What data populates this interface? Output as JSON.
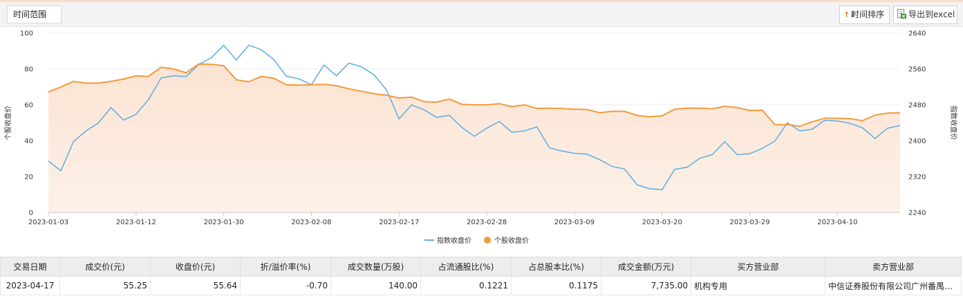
{
  "toolbar": {
    "range_label": "时间范围",
    "sort_label": "时间排序",
    "export_label": "导出到excel"
  },
  "chart_data": {
    "type": "line",
    "title": "",
    "x_ticks": [
      "2023-01-03",
      "2023-01-12",
      "2023-01-30",
      "2023-02-08",
      "2023-02-17",
      "2023-02-28",
      "2023-03-09",
      "2023-03-20",
      "2023-03-29",
      "2023-04-10"
    ],
    "left_axis": {
      "label": "个股收盘价",
      "min": 0,
      "max": 100,
      "ticks": [
        0,
        20,
        40,
        60,
        80,
        100
      ]
    },
    "right_axis": {
      "label": "指数收盘价",
      "min": 2240,
      "max": 2640,
      "ticks": [
        2240,
        2320,
        2400,
        2480,
        2560,
        2640
      ]
    },
    "legend_position": "bottom-center",
    "grid": "horizontal",
    "series": [
      {
        "name": "指数收盘价",
        "axis": "right",
        "color": "#5aaee0",
        "values": [
          2355,
          2333,
          2398,
          2422,
          2440,
          2474,
          2446,
          2459,
          2492,
          2540,
          2545,
          2543,
          2570,
          2585,
          2613,
          2580,
          2613,
          2603,
          2581,
          2544,
          2538,
          2525,
          2569,
          2545,
          2573,
          2565,
          2547,
          2513,
          2449,
          2480,
          2469,
          2452,
          2457,
          2430,
          2410,
          2428,
          2443,
          2419,
          2422,
          2431,
          2384,
          2377,
          2372,
          2370,
          2358,
          2343,
          2337,
          2302,
          2293,
          2291,
          2336,
          2341,
          2361,
          2369,
          2398,
          2369,
          2371,
          2383,
          2399,
          2440,
          2422,
          2426,
          2446,
          2444,
          2439,
          2429,
          2405,
          2428,
          2434
        ]
      },
      {
        "name": "个股收盘价",
        "axis": "left",
        "color": "#f39a3a",
        "values": [
          67.2,
          70.0,
          73.1,
          72.1,
          72.1,
          73.1,
          74.4,
          76.2,
          75.9,
          81.0,
          80.0,
          77.9,
          82.8,
          82.6,
          81.8,
          74.0,
          72.9,
          75.9,
          74.8,
          71.2,
          71.0,
          71.2,
          71.5,
          70.7,
          68.9,
          67.6,
          66.2,
          65.4,
          63.8,
          64.3,
          61.8,
          61.5,
          63.3,
          60.3,
          60.0,
          60.0,
          60.7,
          59.0,
          60.0,
          58.0,
          58.2,
          58.0,
          57.6,
          57.4,
          55.6,
          56.4,
          56.4,
          54.1,
          53.4,
          53.9,
          57.6,
          58.2,
          58.2,
          57.8,
          59.2,
          58.5,
          56.9,
          57.0,
          49.0,
          49.0,
          48.1,
          50.6,
          52.6,
          52.5,
          52.3,
          51.2,
          54.3,
          55.4,
          55.6
        ]
      }
    ]
  },
  "table": {
    "headers": [
      "交易日期",
      "成交价(元)",
      "收盘价(元)",
      "折/溢价率(%)",
      "成交数量(万股)",
      "占流通股比(%)",
      "占总股本比(%)",
      "成交金额(万元)",
      "买方营业部",
      "卖方营业部"
    ],
    "rows": [
      [
        "2023-04-17",
        "55.25",
        "55.64",
        "-0.70",
        "140.00",
        "0.1221",
        "0.1175",
        "7,735.00",
        "机构专用",
        "中信证券股份有限公司广州番禺…"
      ]
    ]
  }
}
